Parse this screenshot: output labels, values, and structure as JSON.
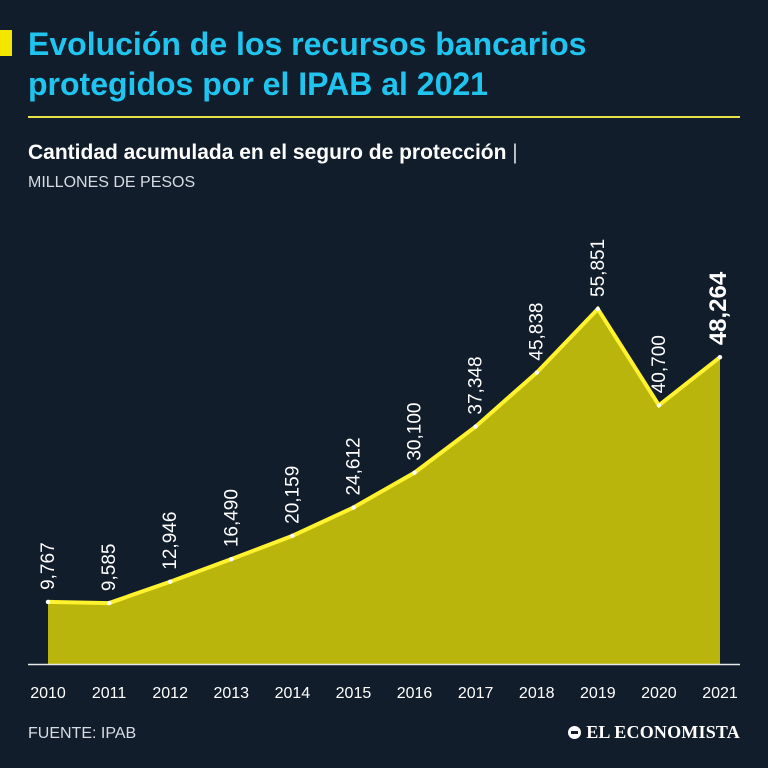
{
  "header": {
    "title": "Evolución de los recursos bancarios protegidos por el IPAB al 2021",
    "subtitle": "Cantidad acumulada en el seguro de protección",
    "subtitle_separator": "|",
    "units": "MILLONES DE PESOS"
  },
  "footer": {
    "source": "FUENTE: IPAB",
    "brand": "EL ECONOMISTA"
  },
  "colors": {
    "background": "#121d2b",
    "title": "#1fc4ef",
    "line": "#fff22e",
    "area": "#c9c20a",
    "text": "#ffffff"
  },
  "chart_data": {
    "type": "area",
    "x": [
      "2010",
      "2011",
      "2012",
      "2013",
      "2014",
      "2015",
      "2016",
      "2017",
      "2018",
      "2019",
      "2020",
      "2021"
    ],
    "values": [
      9767,
      9585,
      12946,
      16490,
      20159,
      24612,
      30100,
      37348,
      45838,
      55851,
      40700,
      48264
    ],
    "data_labels": [
      "9,767",
      "9,585",
      "12,946",
      "16,490",
      "20,159",
      "24,612",
      "30,100",
      "37,348",
      "45,838",
      "55,851",
      "40,700",
      "48,264"
    ],
    "highlight_last": true,
    "ylim": [
      0,
      56000
    ],
    "grid": false,
    "title": "Cantidad acumulada en el seguro de protección",
    "ylabel": "MILLONES DE PESOS",
    "xlabel": ""
  }
}
